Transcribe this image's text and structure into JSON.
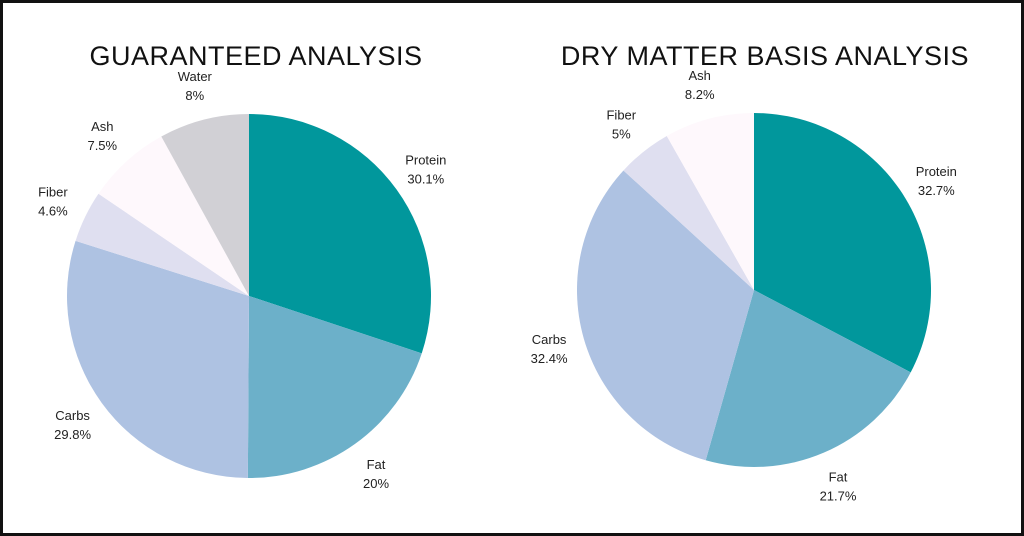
{
  "chart_data": [
    {
      "type": "pie",
      "title": "GUARANTEED ANALYSIS",
      "slices": [
        {
          "label": "Protein",
          "value": 30.1,
          "display": "30.1%",
          "color": "#01979c"
        },
        {
          "label": "Fat",
          "value": 20,
          "display": "20%",
          "color": "#6cb0c9"
        },
        {
          "label": "Carbs",
          "value": 29.8,
          "display": "29.8%",
          "color": "#aec2e2"
        },
        {
          "label": "Fiber",
          "value": 4.6,
          "display": "4.6%",
          "color": "#dfdff0"
        },
        {
          "label": "Ash",
          "value": 7.5,
          "display": "7.5%",
          "color": "#fef8fc"
        },
        {
          "label": "Water",
          "value": 8,
          "display": "8%",
          "color": "#d1d0d5"
        }
      ]
    },
    {
      "type": "pie",
      "title": "DRY MATTER BASIS ANALYSIS",
      "slices": [
        {
          "label": "Protein",
          "value": 32.7,
          "display": "32.7%",
          "color": "#01979c"
        },
        {
          "label": "Fat",
          "value": 21.7,
          "display": "21.7%",
          "color": "#6cb0c9"
        },
        {
          "label": "Carbs",
          "value": 32.4,
          "display": "32.4%",
          "color": "#aec2e2"
        },
        {
          "label": "Fiber",
          "value": 5,
          "display": "5%",
          "color": "#dfdff0"
        },
        {
          "label": "Ash",
          "value": 8.2,
          "display": "8.2%",
          "color": "#fef8fc"
        }
      ]
    }
  ]
}
